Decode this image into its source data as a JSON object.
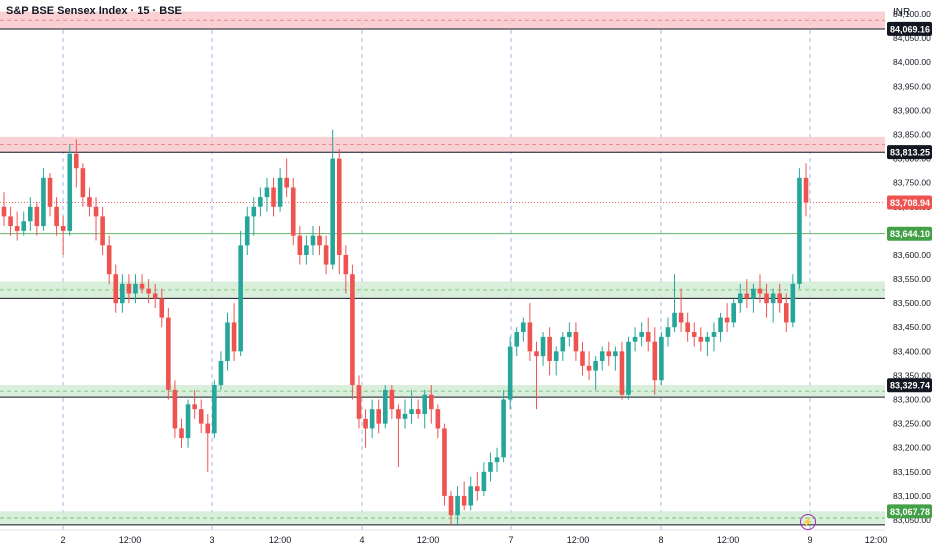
{
  "header": {
    "title": "S&P BSE Sensex Index · 15 · BSE",
    "currency": "INR"
  },
  "icons": {
    "flash": "lightning-icon"
  },
  "colors": {
    "up": "#26a69a",
    "down": "#ef5350",
    "resistance_fill": "#f8c9cc",
    "support_fill": "#d4ebd6",
    "level_line": "#131722",
    "grid_vertical": "#5b7bd6"
  },
  "chart_data": {
    "type": "candlestick",
    "y_axis": {
      "min": 83050,
      "max": 84100,
      "ticks": [
        84100,
        84050,
        84000,
        83950,
        83900,
        83850,
        83800,
        83750,
        83700,
        83650,
        83600,
        83550,
        83500,
        83450,
        83400,
        83350,
        83300,
        83250,
        83200,
        83150,
        83100,
        83050
      ]
    },
    "x_ticks": [
      "2",
      "12:00",
      "3",
      "12:00",
      "4",
      "12:00",
      "7",
      "12:00",
      "8",
      "12:00",
      "9",
      "12:00"
    ],
    "zones": [
      {
        "type": "resistance",
        "low": 84069,
        "high": 84105
      },
      {
        "type": "resistance",
        "low": 83813,
        "high": 83845
      },
      {
        "type": "support",
        "low": 83510,
        "high": 83545
      },
      {
        "type": "support",
        "low": 83305,
        "high": 83330
      },
      {
        "type": "support",
        "low": 83040,
        "high": 83068
      }
    ],
    "price_labels": [
      {
        "value": 84069.16,
        "text": "84,069.16",
        "style": "dark"
      },
      {
        "value": 83813.25,
        "text": "83,813.25",
        "style": "dark"
      },
      {
        "value": 83708.94,
        "text": "83,708.94",
        "style": "red"
      },
      {
        "value": 83644.1,
        "text": "83,644.10",
        "style": "green"
      },
      {
        "value": 83329.74,
        "text": "83,329.74",
        "style": "dark"
      },
      {
        "value": 83067.78,
        "text": "83,067.78",
        "style": "green"
      }
    ],
    "candles": [
      [
        83700,
        83730,
        83660,
        83680
      ],
      [
        83680,
        83700,
        83640,
        83660
      ],
      [
        83660,
        83690,
        83630,
        83650
      ],
      [
        83650,
        83690,
        83640,
        83670
      ],
      [
        83670,
        83720,
        83650,
        83700
      ],
      [
        83700,
        83710,
        83640,
        83660
      ],
      [
        83660,
        83780,
        83650,
        83760
      ],
      [
        83760,
        83770,
        83680,
        83700
      ],
      [
        83700,
        83720,
        83640,
        83660
      ],
      [
        83660,
        83680,
        83600,
        83650
      ],
      [
        83650,
        83830,
        83640,
        83810
      ],
      [
        83810,
        83840,
        83740,
        83780
      ],
      [
        83780,
        83790,
        83700,
        83720
      ],
      [
        83720,
        83740,
        83680,
        83700
      ],
      [
        83700,
        83720,
        83630,
        83680
      ],
      [
        83680,
        83700,
        83600,
        83620
      ],
      [
        83620,
        83640,
        83540,
        83560
      ],
      [
        83560,
        83580,
        83480,
        83500
      ],
      [
        83500,
        83560,
        83480,
        83540
      ],
      [
        83540,
        83560,
        83500,
        83520
      ],
      [
        83520,
        83560,
        83500,
        83540
      ],
      [
        83540,
        83560,
        83520,
        83530
      ],
      [
        83530,
        83550,
        83500,
        83520
      ],
      [
        83520,
        83540,
        83490,
        83510
      ],
      [
        83510,
        83530,
        83450,
        83470
      ],
      [
        83470,
        83490,
        83300,
        83320
      ],
      [
        83320,
        83340,
        83220,
        83240
      ],
      [
        83240,
        83260,
        83200,
        83220
      ],
      [
        83220,
        83300,
        83200,
        83290
      ],
      [
        83290,
        83320,
        83260,
        83280
      ],
      [
        83280,
        83300,
        83230,
        83250
      ],
      [
        83250,
        83270,
        83150,
        83230
      ],
      [
        83230,
        83340,
        83220,
        83330
      ],
      [
        83330,
        83400,
        83320,
        83380
      ],
      [
        83380,
        83480,
        83360,
        83460
      ],
      [
        83460,
        83500,
        83380,
        83400
      ],
      [
        83400,
        83650,
        83390,
        83620
      ],
      [
        83620,
        83700,
        83600,
        83680
      ],
      [
        83680,
        83720,
        83640,
        83700
      ],
      [
        83700,
        83740,
        83680,
        83720
      ],
      [
        83720,
        83760,
        83690,
        83740
      ],
      [
        83740,
        83760,
        83680,
        83700
      ],
      [
        83700,
        83780,
        83690,
        83760
      ],
      [
        83760,
        83800,
        83720,
        83740
      ],
      [
        83740,
        83760,
        83620,
        83640
      ],
      [
        83640,
        83660,
        83580,
        83600
      ],
      [
        83600,
        83640,
        83580,
        83620
      ],
      [
        83620,
        83660,
        83600,
        83640
      ],
      [
        83640,
        83660,
        83600,
        83620
      ],
      [
        83620,
        83640,
        83560,
        83580
      ],
      [
        83580,
        83860,
        83570,
        83800
      ],
      [
        83800,
        83820,
        83560,
        83600
      ],
      [
        83600,
        83620,
        83520,
        83560
      ],
      [
        83560,
        83580,
        83300,
        83330
      ],
      [
        83330,
        83350,
        83240,
        83260
      ],
      [
        83260,
        83280,
        83200,
        83240
      ],
      [
        83240,
        83300,
        83220,
        83280
      ],
      [
        83280,
        83300,
        83230,
        83250
      ],
      [
        83250,
        83330,
        83240,
        83320
      ],
      [
        83320,
        83330,
        83260,
        83280
      ],
      [
        83280,
        83290,
        83160,
        83260
      ],
      [
        83260,
        83300,
        83240,
        83270
      ],
      [
        83270,
        83320,
        83250,
        83280
      ],
      [
        83280,
        83300,
        83260,
        83270
      ],
      [
        83270,
        83320,
        83240,
        83310
      ],
      [
        83310,
        83330,
        83250,
        83280
      ],
      [
        83280,
        83290,
        83220,
        83240
      ],
      [
        83240,
        83250,
        83080,
        83100
      ],
      [
        83100,
        83110,
        83040,
        83060
      ],
      [
        83060,
        83120,
        83040,
        83100
      ],
      [
        83100,
        83130,
        83070,
        83080
      ],
      [
        83080,
        83140,
        83070,
        83120
      ],
      [
        83120,
        83150,
        83090,
        83110
      ],
      [
        83110,
        83170,
        83100,
        83150
      ],
      [
        83150,
        83190,
        83130,
        83170
      ],
      [
        83170,
        83200,
        83150,
        83180
      ],
      [
        83180,
        83320,
        83170,
        83300
      ],
      [
        83300,
        83430,
        83280,
        83410
      ],
      [
        83410,
        83450,
        83390,
        83440
      ],
      [
        83440,
        83470,
        83420,
        83460
      ],
      [
        83460,
        83500,
        83380,
        83400
      ],
      [
        83400,
        83420,
        83280,
        83390
      ],
      [
        83390,
        83440,
        83370,
        83430
      ],
      [
        83430,
        83450,
        83350,
        83380
      ],
      [
        83380,
        83410,
        83350,
        83400
      ],
      [
        83400,
        83440,
        83380,
        83430
      ],
      [
        83430,
        83460,
        83410,
        83440
      ],
      [
        83440,
        83460,
        83380,
        83400
      ],
      [
        83400,
        83420,
        83350,
        83370
      ],
      [
        83370,
        83400,
        83340,
        83360
      ],
      [
        83360,
        83390,
        83320,
        83380
      ],
      [
        83380,
        83410,
        83360,
        83400
      ],
      [
        83400,
        83420,
        83370,
        83390
      ],
      [
        83390,
        83410,
        83360,
        83400
      ],
      [
        83400,
        83420,
        83300,
        83310
      ],
      [
        83310,
        83430,
        83300,
        83420
      ],
      [
        83420,
        83450,
        83400,
        83430
      ],
      [
        83430,
        83460,
        83410,
        83440
      ],
      [
        83440,
        83470,
        83400,
        83420
      ],
      [
        83420,
        83450,
        83310,
        83340
      ],
      [
        83340,
        83440,
        83330,
        83430
      ],
      [
        83430,
        83470,
        83410,
        83450
      ],
      [
        83450,
        83560,
        83440,
        83480
      ],
      [
        83480,
        83530,
        83440,
        83460
      ],
      [
        83460,
        83480,
        83420,
        83440
      ],
      [
        83440,
        83460,
        83410,
        83430
      ],
      [
        83430,
        83450,
        83400,
        83420
      ],
      [
        83420,
        83440,
        83390,
        83430
      ],
      [
        83430,
        83460,
        83400,
        83440
      ],
      [
        83440,
        83480,
        83420,
        83470
      ],
      [
        83470,
        83500,
        83440,
        83460
      ],
      [
        83460,
        83510,
        83450,
        83500
      ],
      [
        83500,
        83540,
        83480,
        83520
      ],
      [
        83520,
        83550,
        83490,
        83510
      ],
      [
        83510,
        83540,
        83480,
        83530
      ],
      [
        83530,
        83560,
        83500,
        83520
      ],
      [
        83520,
        83540,
        83470,
        83500
      ],
      [
        83500,
        83530,
        83460,
        83520
      ],
      [
        83520,
        83540,
        83480,
        83500
      ],
      [
        83500,
        83520,
        83440,
        83460
      ],
      [
        83460,
        83560,
        83450,
        83540
      ],
      [
        83540,
        83780,
        83530,
        83760
      ],
      [
        83760,
        83790,
        83680,
        83709
      ]
    ]
  }
}
